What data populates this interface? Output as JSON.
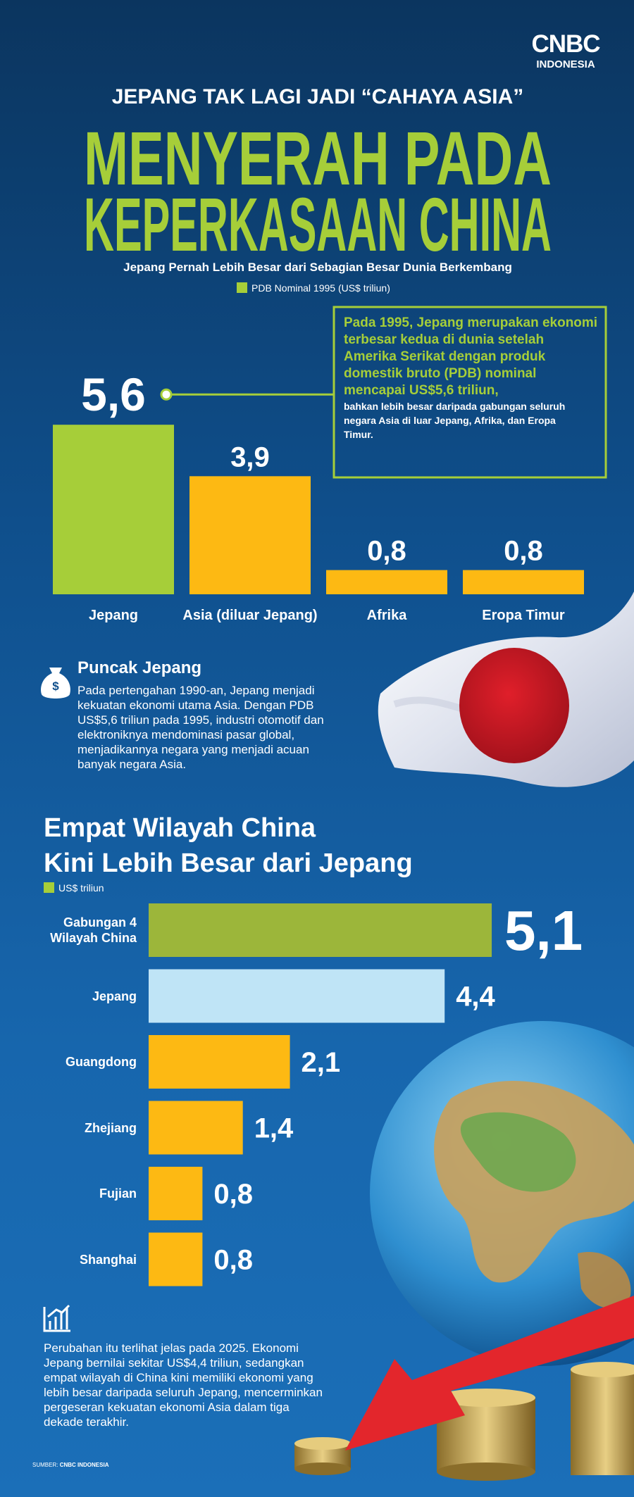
{
  "brand": {
    "name": "CNBC",
    "sub": "INDONESIA"
  },
  "header": {
    "kicker": "JEPANG TAK LAGI JADI “CAHAYA ASIA”",
    "title_lines": [
      "MENYERAH PADA",
      "KEPERKASAAN CHINA"
    ]
  },
  "chart_data": [
    {
      "type": "bar",
      "title": "Jepang Pernah Lebih Besar dari Sebagian Besar Dunia Berkembang",
      "legend": {
        "label": "PDB Nominal 1995 (US$ triliun)",
        "color": "#a6ce39"
      },
      "categories": [
        "Jepang",
        "Asia (diluar Jepang)",
        "Afrika",
        "Eropa Timur"
      ],
      "values": [
        5.6,
        3.9,
        0.8,
        0.8
      ],
      "value_labels": [
        "5,6",
        "3,9",
        "0,8",
        "0,8"
      ],
      "colors": [
        "#a6ce39",
        "#fdb913",
        "#fdb913",
        "#fdb913"
      ],
      "annotation": {
        "highlight": "Pada 1995, Jepang merupakan ekonomi terbesar kedua di dunia setelah Amerika Serikat dengan produk domestik bruto (PDB) nominal mencapai US$5,6 triliun,",
        "body": "bahkan lebih besar daripada gabungan seluruh negara Asia di luar Jepang, Afrika, dan Eropa Timur."
      }
    },
    {
      "type": "barh",
      "title_lines": [
        "Empat Wilayah China",
        "Kini Lebih Besar dari Jepang"
      ],
      "legend": {
        "label": "US$ triliun",
        "color": "#a6ce39"
      },
      "categories": [
        "Gabungan 4 Wilayah China",
        "Jepang",
        "Guangdong",
        "Zhejiang",
        "Fujian",
        "Shanghai"
      ],
      "values": [
        5.1,
        4.4,
        2.1,
        1.4,
        0.8,
        0.8
      ],
      "value_labels": [
        "5,1",
        "4,4",
        "2,1",
        "1,4",
        "0,8",
        "0,8"
      ],
      "colors": [
        "#9cb63a",
        "#bfe4f6",
        "#fdb913",
        "#fdb913",
        "#fdb913",
        "#fdb913"
      ]
    }
  ],
  "sections": {
    "peak": {
      "title": "Puncak Jepang",
      "body": "Pada pertengahan 1990-an, Jepang menjadi kekuatan ekonomi utama Asia. Dengan PDB US$5,6 triliun pada 1995, industri otomotif dan elektroniknya mendominasi pasar global, menjadikannya negara yang menjadi acuan banyak negara Asia."
    },
    "change": {
      "body": "Perubahan itu terlihat jelas pada 2025. Ekonomi Jepang bernilai sekitar US$4,4 triliun, sedangkan empat wilayah di China kini memiliki ekonomi yang lebih besar daripada seluruh Jepang, mencerminkan pergeseran kekuatan ekonomi Asia dalam tiga dekade terakhir."
    }
  },
  "source": {
    "label": "SUMBER:",
    "name": "CNBC INDONESIA"
  }
}
